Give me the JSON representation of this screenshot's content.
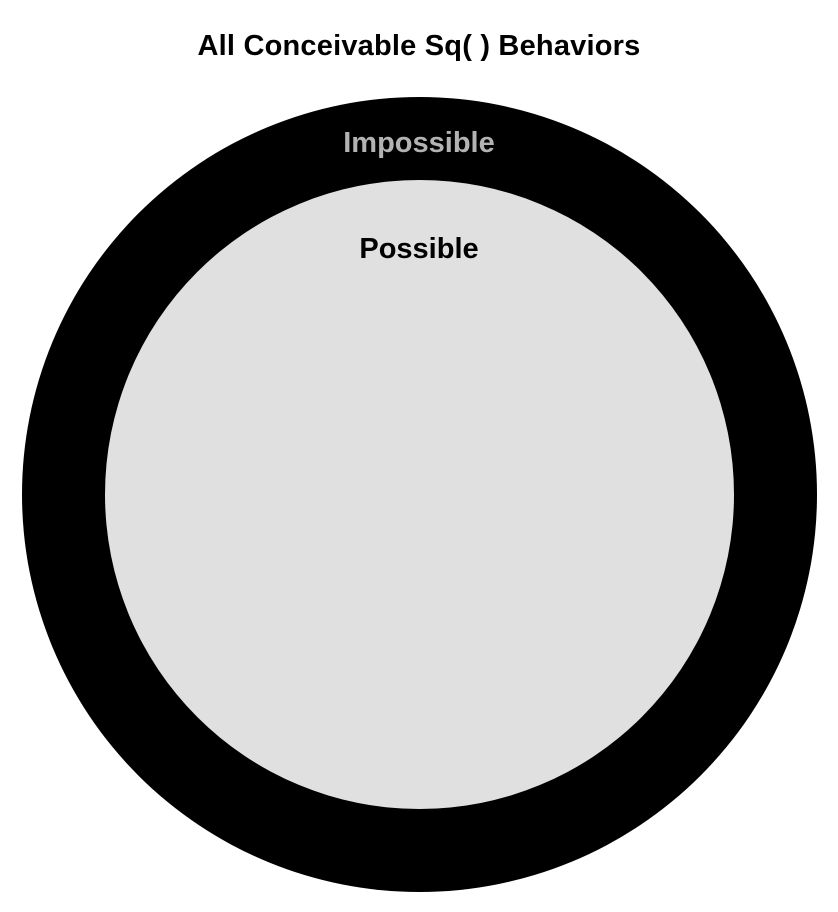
{
  "diagram": {
    "title": "All Conceivable Sq( ) Behaviors",
    "regions": {
      "outer": {
        "label": "Impossible",
        "fill": "#000000",
        "label_color": "#b3b3b3"
      },
      "inner": {
        "label": "Possible",
        "fill": "#e0e0e0",
        "label_color": "#000000"
      }
    }
  }
}
